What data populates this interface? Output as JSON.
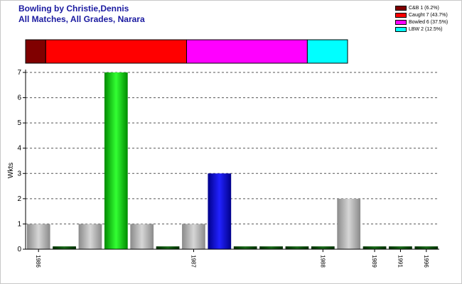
{
  "title_lines": [
    "Bowling by Christie,Dennis",
    "All Matches, All Grades, Narara"
  ],
  "legend": [
    {
      "label": "C&B 1 (6.2%)",
      "color": "#800000",
      "value": 1,
      "percent": 6.2
    },
    {
      "label": "Caught 7 (43.7%)",
      "color": "#ff0000",
      "value": 7,
      "percent": 43.7
    },
    {
      "label": "Bowled 6 (37.5%)",
      "color": "#ff00ff",
      "value": 6,
      "percent": 37.5
    },
    {
      "label": "LBW 2 (12.5%)",
      "color": "#00ffff",
      "value": 2,
      "percent": 12.5
    }
  ],
  "chart_data": {
    "type": "bar",
    "ylabel": "Wkts",
    "ylim": [
      0,
      7
    ],
    "yticks": [
      0,
      1,
      2,
      3,
      4,
      5,
      6,
      7
    ],
    "grid": true,
    "bars": [
      {
        "value": 1,
        "style": "gray"
      },
      {
        "value": 0,
        "style": "darkgreen"
      },
      {
        "value": 1,
        "style": "gray"
      },
      {
        "value": 7,
        "style": "green"
      },
      {
        "value": 1,
        "style": "gray"
      },
      {
        "value": 0,
        "style": "darkgreen"
      },
      {
        "value": 1,
        "style": "gray"
      },
      {
        "value": 3,
        "style": "blue"
      },
      {
        "value": 0,
        "style": "darkgreen"
      },
      {
        "value": 0,
        "style": "darkgreen"
      },
      {
        "value": 0,
        "style": "darkgreen"
      },
      {
        "value": 0,
        "style": "darkgreen"
      },
      {
        "value": 2,
        "style": "gray"
      },
      {
        "value": 0,
        "style": "darkgreen"
      },
      {
        "value": 0,
        "style": "darkgreen"
      },
      {
        "value": 0,
        "style": "darkgreen"
      }
    ],
    "x_tick_labels": [
      {
        "label": "1986",
        "bar": 0
      },
      {
        "label": "1987",
        "bar": 6
      },
      {
        "label": "1988",
        "bar": 11
      },
      {
        "label": "1989",
        "bar": 13
      },
      {
        "label": "1991",
        "bar": 14
      },
      {
        "label": "1996",
        "bar": 15
      }
    ],
    "palette": {
      "gray": [
        "#8a8a8a",
        "#d6d6d6",
        "#8a8a8a"
      ],
      "green": [
        "#008a00",
        "#33ff33",
        "#008a00"
      ],
      "blue": [
        "#00008a",
        "#2222ff",
        "#00008a"
      ],
      "darkgreen": [
        "#003000",
        "#1a6a1a",
        "#003000"
      ]
    }
  }
}
